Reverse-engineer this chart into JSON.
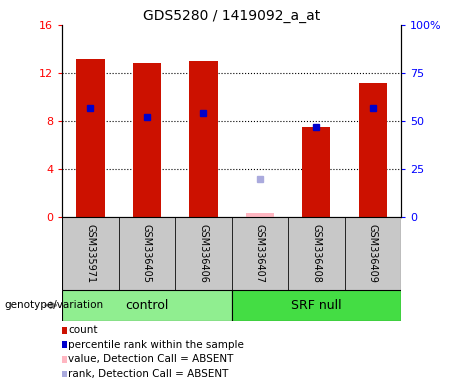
{
  "title": "GDS5280 / 1419092_a_at",
  "samples": [
    "GSM335971",
    "GSM336405",
    "GSM336406",
    "GSM336407",
    "GSM336408",
    "GSM336409"
  ],
  "count_values": [
    13.2,
    12.8,
    13.0,
    null,
    7.5,
    11.2
  ],
  "rank_values": [
    57,
    52,
    54,
    null,
    47,
    57
  ],
  "absent_count": [
    null,
    null,
    null,
    0.35,
    null,
    null
  ],
  "absent_rank": [
    null,
    null,
    null,
    20,
    null,
    null
  ],
  "groups": [
    {
      "label": "control",
      "start": 0,
      "end": 2,
      "color": "#90EE90"
    },
    {
      "label": "SRF null",
      "start": 3,
      "end": 5,
      "color": "#44DD44"
    }
  ],
  "ylim_left": [
    0,
    16
  ],
  "ylim_right": [
    0,
    100
  ],
  "yticks_left": [
    0,
    4,
    8,
    12,
    16
  ],
  "ytick_labels_left": [
    "0",
    "4",
    "8",
    "12",
    "16"
  ],
  "yticks_right": [
    0,
    25,
    50,
    75,
    100
  ],
  "ytick_labels_right": [
    "0",
    "25",
    "50",
    "75",
    "100%"
  ],
  "bar_color": "#CC1100",
  "rank_color": "#0000CC",
  "absent_bar_color": "#FFB6C1",
  "absent_rank_color": "#AAAADD",
  "bar_width": 0.5,
  "legend_items": [
    {
      "color": "#CC1100",
      "label": "count"
    },
    {
      "color": "#0000CC",
      "label": "percentile rank within the sample"
    },
    {
      "color": "#FFB6C1",
      "label": "value, Detection Call = ABSENT"
    },
    {
      "color": "#AAAADD",
      "label": "rank, Detection Call = ABSENT"
    }
  ],
  "genotype_label": "genotype/variation",
  "background_color": "#FFFFFF",
  "plot_bg_color": "#FFFFFF",
  "sample_box_color": "#C8C8C8",
  "gridline_ticks": [
    4,
    8,
    12
  ]
}
